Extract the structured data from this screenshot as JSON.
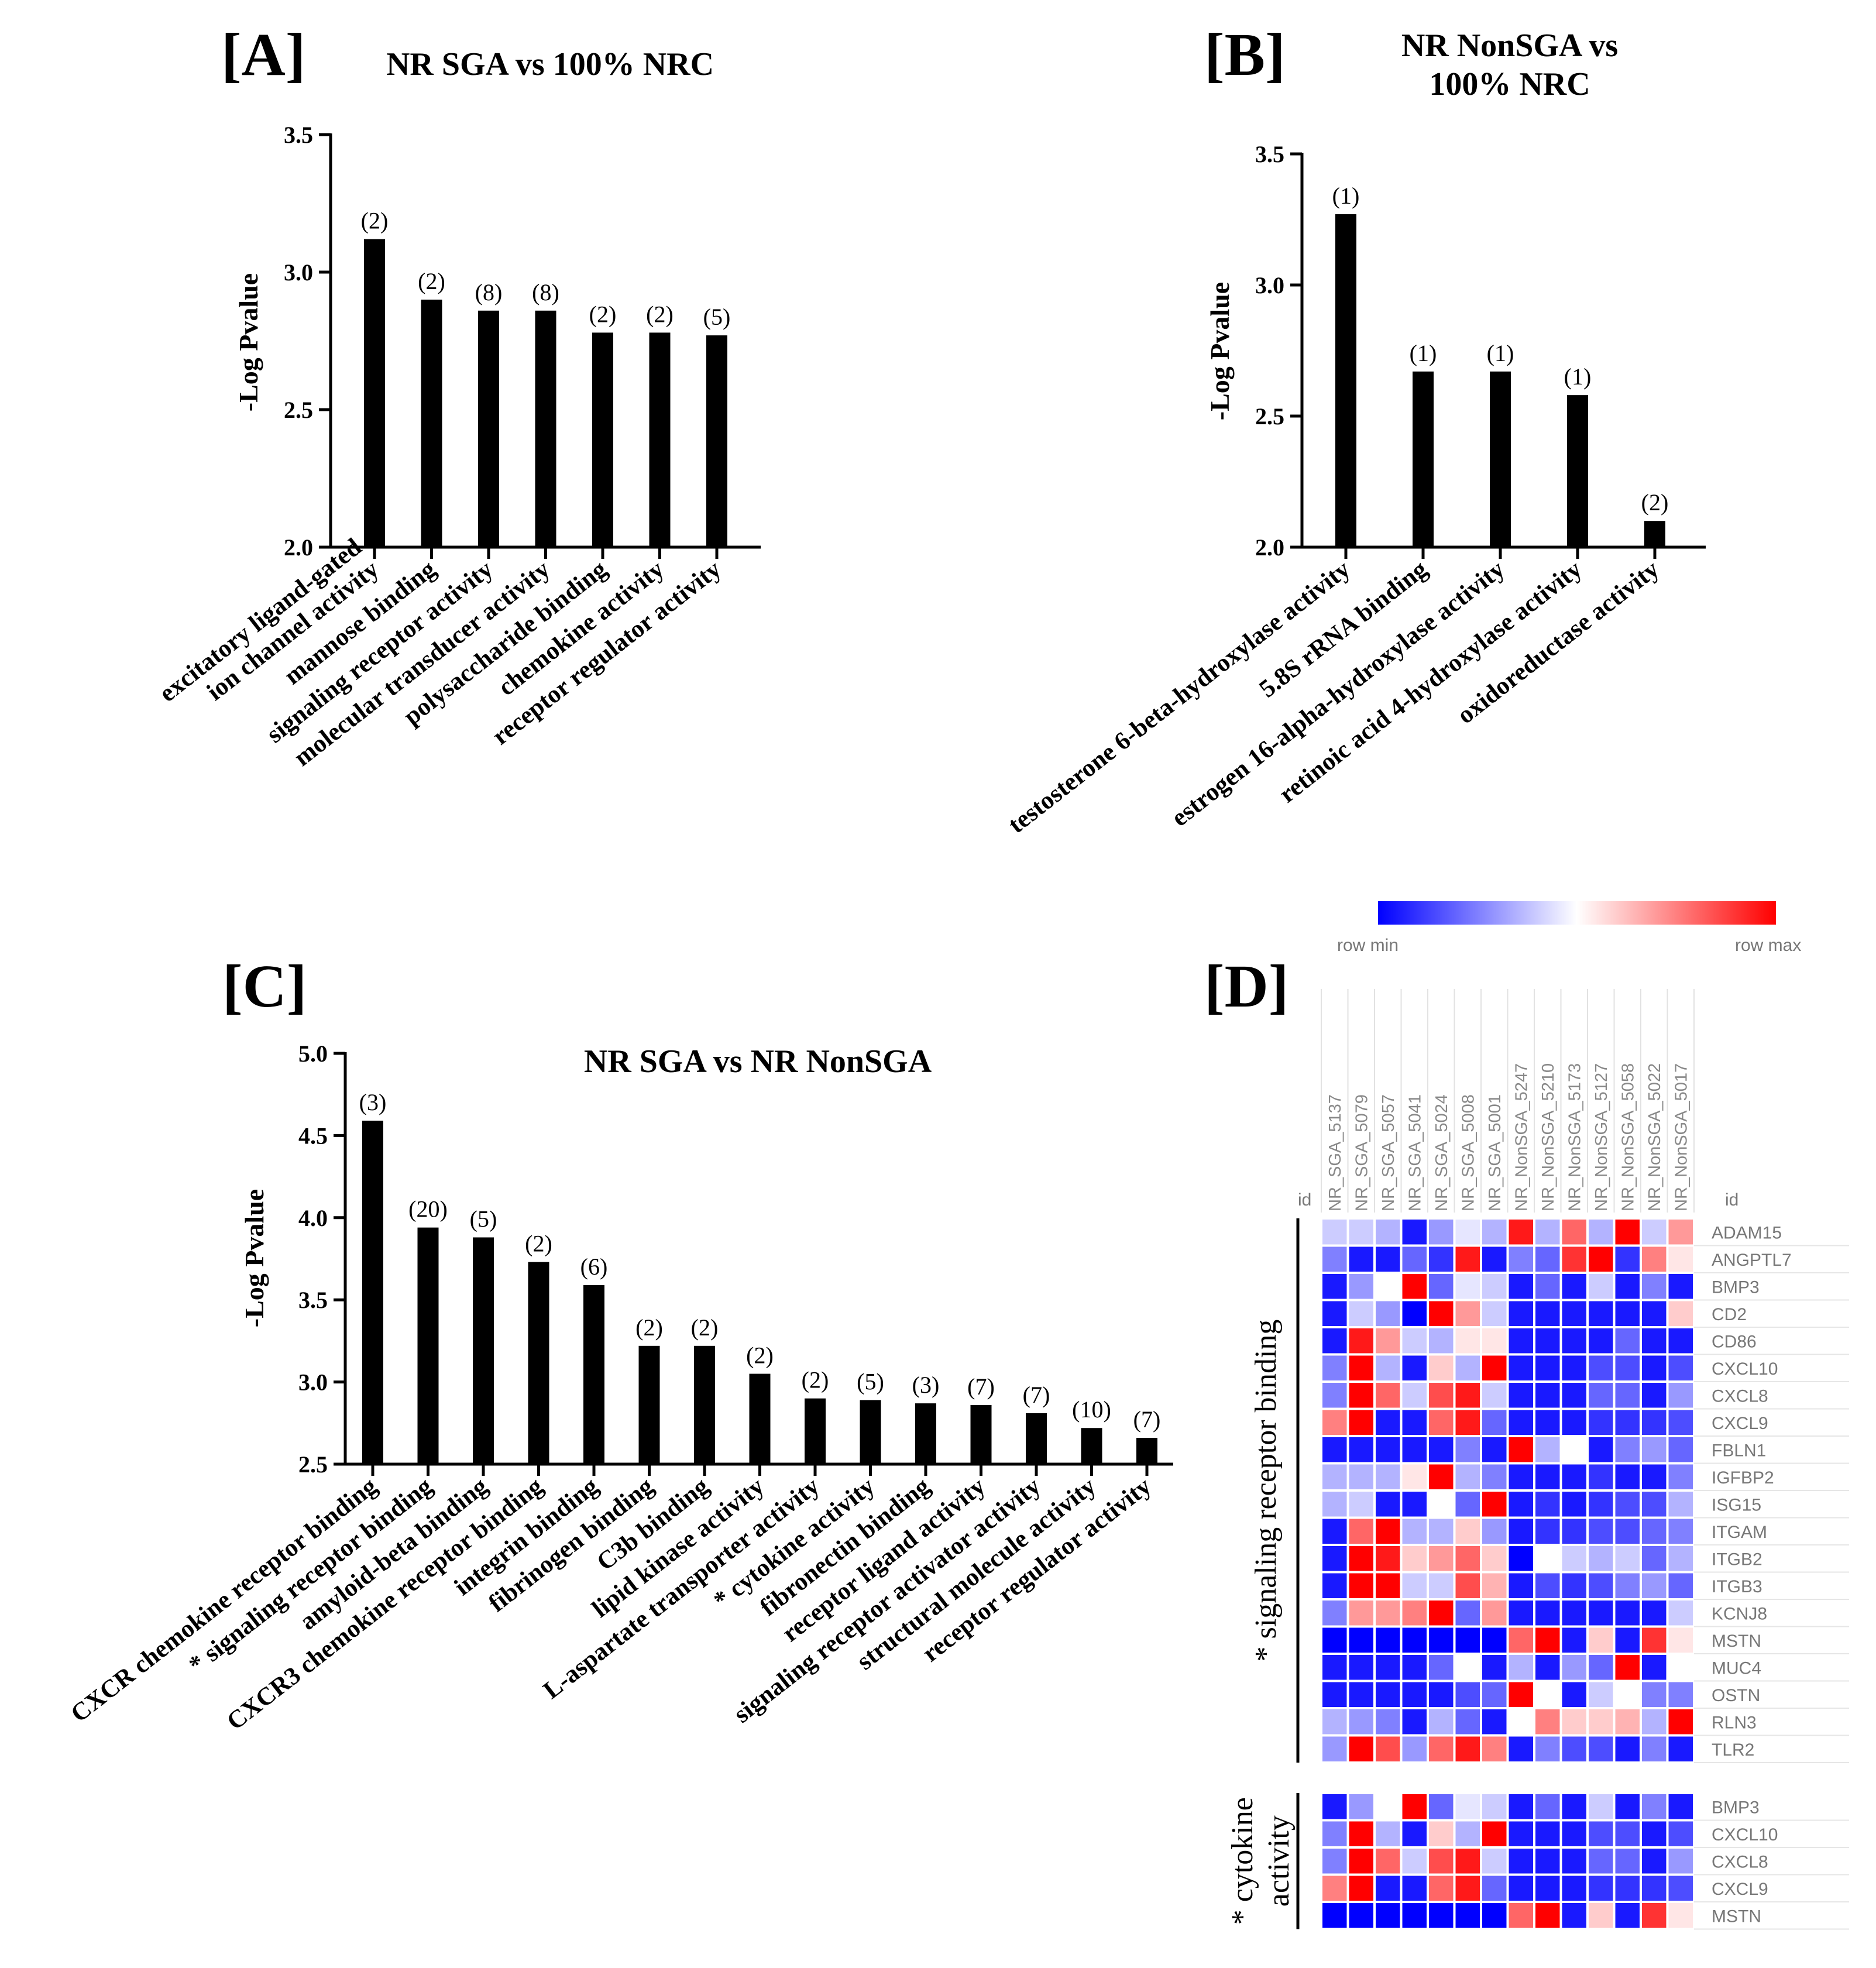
{
  "chart_data": [
    {
      "panel": "A",
      "panel_label": "[A]",
      "type": "bar",
      "title": "NR SGA vs 100% NRC",
      "ylabel": "-Log Pvalue",
      "ylim": [
        2.0,
        3.5
      ],
      "yticks": [
        "2.0",
        "2.5",
        "3.0",
        "3.5"
      ],
      "categories": [
        "excitatory ligand-gated\nion channel activity",
        "mannose binding",
        "signaling receptor activity",
        "molecular transducer activity",
        "polysaccharide binding",
        "chemokine activity",
        "receptor regulator activity"
      ],
      "values": [
        3.12,
        2.9,
        2.86,
        2.86,
        2.78,
        2.78,
        2.77
      ],
      "counts": [
        "(2)",
        "(2)",
        "(8)",
        "(8)",
        "(2)",
        "(2)",
        "(5)"
      ]
    },
    {
      "panel": "B",
      "panel_label": "[B]",
      "type": "bar",
      "title": "NR NonSGA vs\n100% NRC",
      "ylabel": "-Log Pvalue",
      "ylim": [
        2.0,
        3.5
      ],
      "yticks": [
        "2.0",
        "2.5",
        "3.0",
        "3.5"
      ],
      "categories": [
        "testosterone 6-beta-hydroxylase activity",
        "5.8S rRNA binding",
        "estrogen 16-alpha-hydroxylase activity",
        "retinoic acid 4-hydroxylase activity",
        "oxidoreductase activity"
      ],
      "values": [
        3.27,
        2.67,
        2.67,
        2.58,
        2.1
      ],
      "counts": [
        "(1)",
        "(1)",
        "(1)",
        "(1)",
        "(2)"
      ]
    },
    {
      "panel": "C",
      "panel_label": "[C]",
      "type": "bar",
      "title": "NR SGA vs NR NonSGA",
      "ylabel": "-Log Pvalue",
      "ylim": [
        2.5,
        5.0
      ],
      "yticks": [
        "2.5",
        "3.0",
        "3.5",
        "4.0",
        "4.5",
        "5.0"
      ],
      "categories": [
        "CXCR chemokine receptor binding",
        "* signaling receptor binding",
        "amyloid-beta binding",
        "CXCR3 chemokine receptor binding",
        "integrin binding",
        "fibrinogen binding",
        "C3b binding",
        "lipid kinase activity",
        "L-aspartate transporter activity",
        "* cytokine activity",
        "fibronectin binding",
        "receptor ligand activity",
        "signaling receptor activator activity",
        "structural molecule activity",
        "receptor regulator activity"
      ],
      "values": [
        4.59,
        3.94,
        3.88,
        3.73,
        3.59,
        3.22,
        3.22,
        3.05,
        2.9,
        2.89,
        2.87,
        2.86,
        2.81,
        2.72,
        2.66
      ],
      "counts": [
        "(3)",
        "(20)",
        "(5)",
        "(2)",
        "(6)",
        "(2)",
        "(2)",
        "(2)",
        "(2)",
        "(5)",
        "(3)",
        "(7)",
        "(7)",
        "(10)",
        "(7)"
      ]
    },
    {
      "panel": "D",
      "panel_label": "[D]",
      "type": "heatmap",
      "scale": {
        "min_label": "row min",
        "max_label": "row max",
        "min_color": "#0000ff",
        "mid_color": "#ffffff",
        "max_color": "#ff0000"
      },
      "id_label": "id",
      "columns": [
        "NR_SGA_5137",
        "NR_SGA_5079",
        "NR_SGA_5057",
        "NR_SGA_5041",
        "NR_SGA_5024",
        "NR_SGA_5008",
        "NR_SGA_5001",
        "NR_NonSGA_5247",
        "NR_NonSGA_5210",
        "NR_NonSGA_5173",
        "NR_NonSGA_5127",
        "NR_NonSGA_5058",
        "NR_NonSGA_5022",
        "NR_NonSGA_5017"
      ],
      "groups": [
        {
          "label": "* signaling receptor binding",
          "rows": [
            "ADAM15",
            "ANGPTL7",
            "BMP3",
            "CD2",
            "CD86",
            "CXCL10",
            "CXCL8",
            "CXCL9",
            "FBLN1",
            "IGFBP2",
            "ISG15",
            "ITGAM",
            "ITGB2",
            "ITGB3",
            "KCNJ8",
            "MSTN",
            "MUC4",
            "OSTN",
            "RLN3",
            "TLR2"
          ],
          "values": [
            [
              -0.2,
              -0.2,
              -0.3,
              -0.9,
              -0.4,
              -0.1,
              -0.3,
              0.9,
              -0.3,
              0.6,
              -0.3,
              1.0,
              -0.2,
              0.4
            ],
            [
              -0.5,
              -0.9,
              -0.9,
              -0.6,
              -0.8,
              0.9,
              -0.9,
              -0.5,
              -0.6,
              0.8,
              1.0,
              -0.8,
              0.5,
              0.1
            ],
            [
              -0.9,
              -0.4,
              0.0,
              1.0,
              -0.6,
              -0.1,
              -0.2,
              -0.9,
              -0.6,
              -0.9,
              -0.2,
              -0.9,
              -0.5,
              -0.9
            ],
            [
              -0.9,
              -0.2,
              -0.4,
              -1.0,
              1.0,
              0.4,
              -0.2,
              -0.9,
              -0.9,
              -0.9,
              -0.9,
              -0.9,
              -0.9,
              0.2
            ],
            [
              -0.9,
              0.9,
              0.4,
              -0.2,
              -0.3,
              0.1,
              0.1,
              -0.9,
              -0.9,
              -0.9,
              -0.9,
              -0.6,
              -0.9,
              -0.9
            ],
            [
              -0.5,
              1.0,
              -0.3,
              -0.9,
              0.2,
              -0.3,
              1.0,
              -0.9,
              -0.9,
              -0.9,
              -0.7,
              -0.7,
              -0.9,
              -0.7
            ],
            [
              -0.5,
              1.0,
              0.6,
              -0.2,
              0.7,
              0.9,
              -0.2,
              -0.9,
              -0.9,
              -0.9,
              -0.6,
              -0.6,
              -0.9,
              -0.4
            ],
            [
              0.5,
              1.0,
              -0.9,
              -0.9,
              0.6,
              0.9,
              -0.6,
              -0.9,
              -0.9,
              -0.9,
              -0.8,
              -0.8,
              -0.8,
              -0.7
            ],
            [
              -0.9,
              -0.9,
              -0.9,
              -0.9,
              -0.9,
              -0.5,
              -0.9,
              1.0,
              -0.3,
              0.0,
              -0.9,
              -0.5,
              -0.4,
              -0.6
            ],
            [
              -0.3,
              -0.3,
              -0.3,
              0.1,
              1.0,
              -0.3,
              -0.5,
              -0.9,
              -0.9,
              -0.9,
              -0.8,
              -0.9,
              -0.9,
              -0.5
            ],
            [
              -0.3,
              -0.2,
              -0.9,
              -0.9,
              0.0,
              -0.6,
              1.0,
              -0.9,
              -0.8,
              -0.9,
              -0.8,
              -0.7,
              -0.7,
              -0.3
            ],
            [
              -0.9,
              0.6,
              1.0,
              -0.3,
              -0.3,
              0.2,
              -0.4,
              -0.9,
              -0.8,
              -0.8,
              -0.7,
              -0.7,
              -0.6,
              -0.5
            ],
            [
              -0.9,
              1.0,
              0.9,
              0.2,
              0.4,
              0.6,
              0.2,
              -1.0,
              0.0,
              -0.2,
              -0.3,
              -0.2,
              -0.6,
              -0.3
            ],
            [
              -0.9,
              1.0,
              1.0,
              -0.2,
              -0.2,
              0.7,
              0.3,
              -0.9,
              -0.7,
              -0.8,
              -0.7,
              -0.5,
              -0.4,
              -0.6
            ],
            [
              -0.5,
              0.4,
              0.4,
              0.5,
              1.0,
              -0.6,
              0.4,
              -0.9,
              -0.9,
              -0.9,
              -0.9,
              -0.9,
              -0.9,
              -0.2
            ],
            [
              -1.0,
              -1.0,
              -1.0,
              -1.0,
              -1.0,
              -1.0,
              -1.0,
              0.6,
              1.0,
              -0.9,
              0.2,
              -0.9,
              0.8,
              0.1
            ],
            [
              -0.9,
              -0.9,
              -0.9,
              -0.9,
              -0.6,
              0.0,
              -0.9,
              -0.3,
              -0.9,
              -0.4,
              -0.6,
              1.0,
              -0.9,
              0.0
            ],
            [
              -0.9,
              -0.9,
              -0.9,
              -0.9,
              -0.9,
              -0.7,
              -0.6,
              1.0,
              0.0,
              -0.9,
              -0.2,
              0.0,
              -0.5,
              -0.5
            ],
            [
              -0.3,
              -0.4,
              -0.5,
              -0.9,
              -0.3,
              -0.6,
              -0.9,
              0.0,
              0.5,
              0.2,
              0.2,
              0.3,
              -0.3,
              1.0
            ],
            [
              -0.4,
              1.0,
              0.7,
              -0.4,
              0.6,
              0.9,
              0.5,
              -0.9,
              -0.5,
              -0.7,
              -0.7,
              -0.9,
              -0.5,
              -0.9
            ]
          ]
        },
        {
          "label": "* cytokine\nactivity",
          "rows": [
            "BMP3",
            "CXCL10",
            "CXCL8",
            "CXCL9",
            "MSTN"
          ],
          "values": [
            [
              -0.9,
              -0.4,
              0.0,
              1.0,
              -0.6,
              -0.1,
              -0.2,
              -0.9,
              -0.6,
              -0.9,
              -0.2,
              -0.9,
              -0.5,
              -0.9
            ],
            [
              -0.5,
              1.0,
              -0.3,
              -0.9,
              0.2,
              -0.3,
              1.0,
              -0.9,
              -0.9,
              -0.9,
              -0.7,
              -0.7,
              -0.9,
              -0.7
            ],
            [
              -0.5,
              1.0,
              0.6,
              -0.2,
              0.7,
              0.9,
              -0.2,
              -0.9,
              -0.9,
              -0.9,
              -0.6,
              -0.6,
              -0.9,
              -0.4
            ],
            [
              0.5,
              1.0,
              -0.9,
              -0.9,
              0.6,
              0.9,
              -0.6,
              -0.9,
              -0.9,
              -0.9,
              -0.8,
              -0.8,
              -0.8,
              -0.7
            ],
            [
              -1.0,
              -1.0,
              -1.0,
              -1.0,
              -1.0,
              -1.0,
              -1.0,
              0.6,
              1.0,
              -0.9,
              0.2,
              -0.9,
              0.8,
              0.1
            ]
          ]
        }
      ]
    }
  ]
}
